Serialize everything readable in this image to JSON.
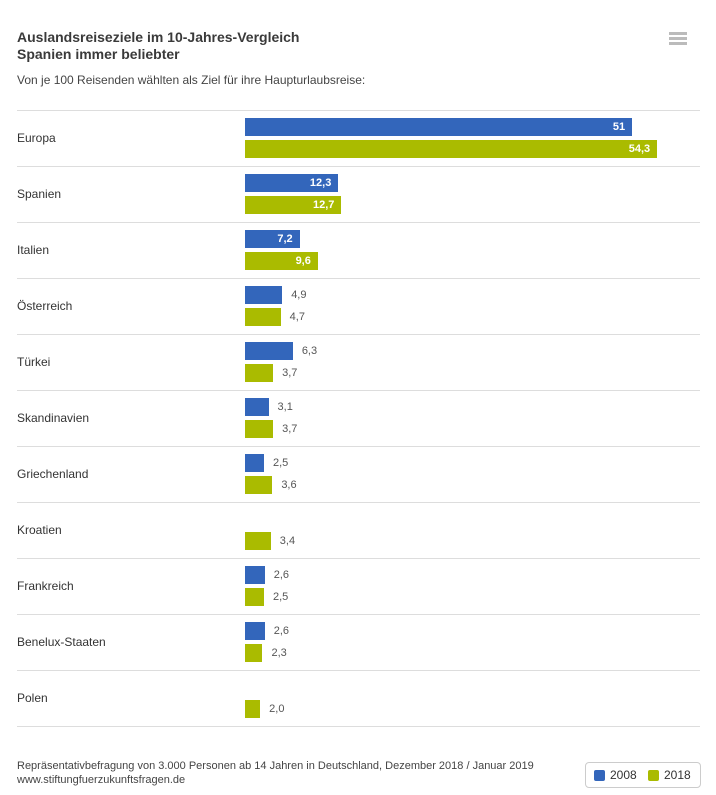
{
  "header": {
    "title_line1": "Auslandsreiseziele im 10-Jahres-Vergleich",
    "title_line2": "Spanien immer beliebter",
    "subtitle": "Von je 100 Reisenden wählten als Ziel für ihre Haupturlaubsreise:",
    "menu_icon": "hamburger-icon"
  },
  "chart_data": {
    "type": "bar",
    "orientation": "horizontal",
    "title": "Auslandsreiseziele im 10-Jahres-Vergleich",
    "subtitle": "Spanien immer beliebter",
    "categories": [
      "Europa",
      "Spanien",
      "Italien",
      "Österreich",
      "Türkei",
      "Skandinavien",
      "Griechenland",
      "Kroatien",
      "Frankreich",
      "Benelux-Staaten",
      "Polen"
    ],
    "series": [
      {
        "name": "2008",
        "color": "#3366bb",
        "values": [
          51,
          12.3,
          7.2,
          4.9,
          6.3,
          3.1,
          2.5,
          null,
          2.6,
          2.6,
          null
        ],
        "labels": [
          "51",
          "12,3",
          "7,2",
          "4,9",
          "6,3",
          "3,1",
          "2,5",
          "",
          "2,6",
          "2,6",
          ""
        ]
      },
      {
        "name": "2018",
        "color": "#aabb00",
        "values": [
          54.3,
          12.7,
          9.6,
          4.7,
          3.7,
          3.7,
          3.6,
          3.4,
          2.5,
          2.3,
          2.0
        ],
        "labels": [
          "54,3",
          "12,7",
          "9,6",
          "4,7",
          "3,7",
          "3,7",
          "3,6",
          "3,4",
          "2,5",
          "2,3",
          "2,0"
        ]
      }
    ],
    "legend": "bottom-right",
    "grid": false
  },
  "footer": {
    "source": "Repräsentativbefragung von 3.000 Personen ab 14 Jahren in Deutschland, Dezember 2018 / Januar 2019",
    "url": "www.stiftungfuerzukunftsfragen.de"
  }
}
